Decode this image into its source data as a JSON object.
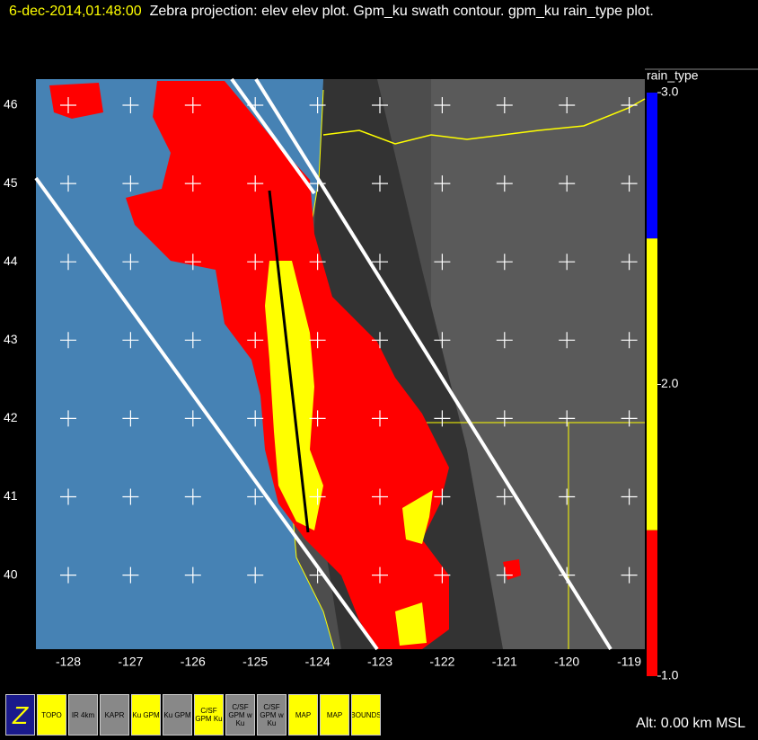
{
  "header": {
    "timestamp": "6-dec-2014,01:48:00",
    "description": "Zebra projection: elev elev  plot.  Gpm_ku swath contour.  gpm_ku rain_type plot."
  },
  "map": {
    "lat_ticks": [
      46,
      45,
      44,
      43,
      42,
      41,
      40
    ],
    "lon_ticks": [
      -128,
      -127,
      -126,
      -125,
      -124,
      -123,
      -122,
      -121,
      -120,
      -119
    ]
  },
  "colorbar": {
    "label": "rain_type",
    "ticks": [
      {
        "value": 3,
        "label": "3.0"
      },
      {
        "value": 2,
        "label": "2.0"
      },
      {
        "value": 1,
        "label": "1.0"
      }
    ],
    "colors": [
      "#0000ff",
      "#ffff00",
      "#ff0000"
    ]
  },
  "toolbar": {
    "icons": [
      "Z",
      "TOPO",
      "IR 4km",
      "KAPR",
      "Ku GPM",
      "Ku GPM",
      "C/SF GPM Ku",
      "C/SF GPM w Ku",
      "C/SF GPM w Ku",
      "MAP",
      "MAP",
      "BOUNDS"
    ]
  },
  "status": "Alt: 0.00 km MSL"
}
